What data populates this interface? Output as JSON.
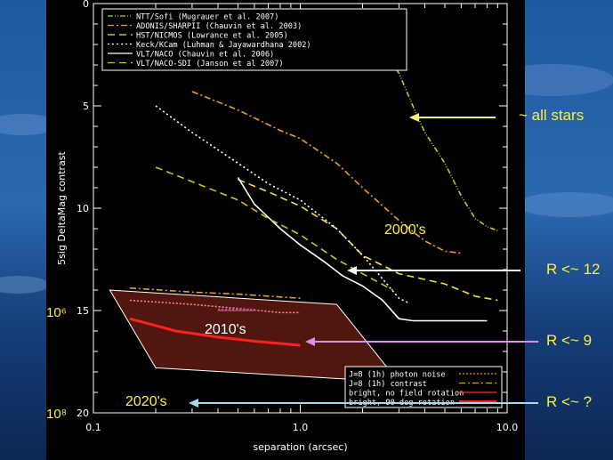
{
  "background": {
    "sky": "#1d4f8f",
    "deep": "#0c2a5c",
    "light": "#7fa6d6"
  },
  "chart_data": {
    "type": "line",
    "xlabel": "separation (arcsec)",
    "ylabel": "5sig DeltaMag contrast",
    "xscale": "log",
    "xlim": [
      0.1,
      10.0
    ],
    "ylim": [
      20,
      0
    ],
    "xticks": [
      "0.1",
      "1.0",
      "10.0"
    ],
    "yticks": [
      "0",
      "5",
      "10",
      "15",
      "20"
    ],
    "legend_position": "top-left",
    "legend2_position": "bottom-right",
    "series": [
      {
        "name": "NTT/Sofi (Mugrauer et al. 2007)",
        "color": "#c8c814",
        "dash": "6 2 1 2 1 2",
        "points": [
          [
            2.5,
            2.2
          ],
          [
            3.0,
            3.4
          ],
          [
            3.5,
            5.0
          ],
          [
            4.0,
            6.3
          ],
          [
            5.0,
            7.8
          ],
          [
            6.0,
            9.4
          ],
          [
            7.0,
            10.5
          ],
          [
            8.0,
            10.9
          ],
          [
            9.0,
            11.1
          ]
        ]
      },
      {
        "name": "ADONIS/SHARPII (Chauvin et al. 2003)",
        "color": "#e8a020",
        "dash": "7 3 2 3",
        "points": [
          [
            0.3,
            4.3
          ],
          [
            0.5,
            5.2
          ],
          [
            0.8,
            6.2
          ],
          [
            1.0,
            6.6
          ],
          [
            1.5,
            7.8
          ],
          [
            2.0,
            9.0
          ],
          [
            3.0,
            10.6
          ],
          [
            4.0,
            11.6
          ],
          [
            5.0,
            12.1
          ],
          [
            6.0,
            12.2
          ]
        ]
      },
      {
        "name": "HST/NICMOS (Lowrance et al. 2005)",
        "color": "#f0e040",
        "dash": "8 5",
        "points": [
          [
            0.5,
            8.6
          ],
          [
            0.7,
            9.2
          ],
          [
            1.0,
            9.9
          ],
          [
            1.5,
            11.0
          ],
          [
            2.0,
            12.3
          ],
          [
            3.0,
            13.2
          ],
          [
            5.0,
            13.7
          ],
          [
            7.0,
            14.3
          ],
          [
            9.0,
            14.5
          ]
        ]
      },
      {
        "name": "Keck/KCam (Luhman & Jayawardhana 2002)",
        "color": "#ffffff",
        "dash": "2 3",
        "points": [
          [
            0.2,
            5.0
          ],
          [
            0.3,
            6.3
          ],
          [
            0.5,
            7.8
          ],
          [
            0.7,
            8.8
          ],
          [
            1.0,
            9.6
          ],
          [
            1.5,
            11.0
          ],
          [
            2.0,
            12.3
          ],
          [
            3.0,
            14.4
          ],
          [
            3.3,
            14.6
          ]
        ]
      },
      {
        "name": "VLT/NACO (Chauvin et al. 2006)",
        "color": "#ffffff",
        "dash": "",
        "points": [
          [
            0.5,
            8.5
          ],
          [
            0.6,
            9.8
          ],
          [
            0.8,
            11.0
          ],
          [
            1.0,
            11.8
          ],
          [
            1.3,
            12.6
          ],
          [
            1.6,
            13.3
          ],
          [
            2.0,
            13.8
          ],
          [
            2.5,
            14.5
          ],
          [
            3.0,
            15.4
          ],
          [
            3.5,
            15.5
          ],
          [
            8.0,
            15.5
          ]
        ]
      },
      {
        "name": "VLT/NACO-SDI (Janson et al 2007)",
        "color": "#c8c814",
        "dash": "8 5",
        "points": [
          [
            0.2,
            8.0
          ],
          [
            0.3,
            8.7
          ],
          [
            0.5,
            9.6
          ],
          [
            0.7,
            10.5
          ],
          [
            1.0,
            11.3
          ],
          [
            1.5,
            12.5
          ],
          [
            2.0,
            13.2
          ],
          [
            2.8,
            14.0
          ]
        ]
      },
      {
        "name": "J=8 (1h) photon noise",
        "color": "#ff8888",
        "dash": "2 2",
        "points": [
          [
            0.15,
            14.5
          ],
          [
            0.3,
            14.7
          ],
          [
            0.5,
            14.9
          ],
          [
            0.8,
            15.1
          ],
          [
            1.0,
            15.1
          ]
        ]
      },
      {
        "name": "J=8 (1h) contrast",
        "color": "#e8a020",
        "dash": "7 3 2 3",
        "points": [
          [
            0.15,
            13.9
          ],
          [
            0.3,
            14.1
          ],
          [
            0.5,
            14.2
          ],
          [
            1.0,
            14.4
          ]
        ]
      },
      {
        "name": "bright, no field rotation",
        "color": "#ff3030",
        "dash": "",
        "points": [
          [
            0.4,
            15.0
          ],
          [
            0.6,
            15.0
          ]
        ]
      },
      {
        "name": "bright, 90 deg rotation",
        "color": "#ff2020",
        "dash": "",
        "width": 3,
        "points": [
          [
            0.15,
            15.4
          ],
          [
            0.25,
            16.0
          ],
          [
            0.4,
            16.3
          ],
          [
            0.6,
            16.5
          ],
          [
            1.0,
            16.7
          ]
        ]
      }
    ]
  },
  "legend": {
    "entries": [
      "NTT/Sofi (Mugrauer et al. 2007)",
      "ADONIS/SHARPII (Chauvin et al. 2003)",
      "HST/NICMOS (Lowrance et al. 2005)",
      "Keck/KCam (Luhman & Jayawardhana 2002)",
      "VLT/NACO (Chauvin et al. 2006)",
      "VLT/NACO-SDI (Janson et al 2007)"
    ]
  },
  "legend2": {
    "entries": [
      "J=8 (1h) photon noise",
      "J=8 (1h) contrast",
      "bright, no field rotation",
      "bright, 90 deg rotation"
    ]
  },
  "annotations": {
    "all_stars": "~ all stars",
    "r12": "R <~ 12",
    "r9": "R <~ 9",
    "r_unknown": "R <~ ?",
    "decade_2000": "2000's",
    "decade_2010": "2010's",
    "decade_2020": "2020's",
    "contrast_1e6": "10⁶",
    "contrast_1e8": "10⁸"
  },
  "arrow_colors": {
    "all_stars": "#f4f070",
    "r12": "#ffffff",
    "r9": "#d890e8",
    "r_unknown": "#a8d8f0"
  }
}
